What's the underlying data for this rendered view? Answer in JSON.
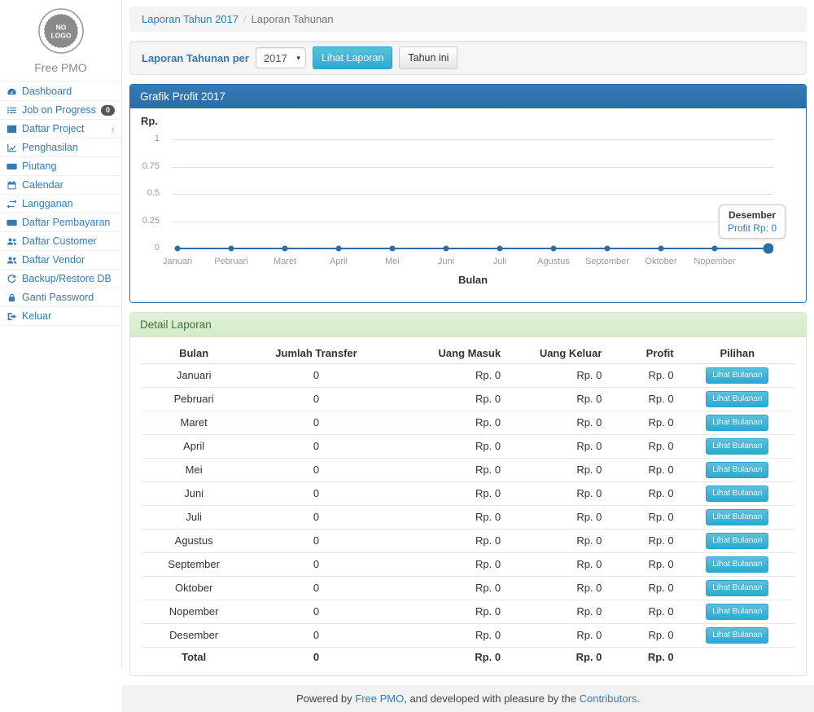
{
  "app": {
    "name": "Free PMO",
    "logo_text_line1": "NO",
    "logo_text_line2": "LOGO"
  },
  "colors": {
    "primary_header": "#2e6da4",
    "link": "#337ab7",
    "info_button": "#5bc0de",
    "success_header_bg": "#dff0d8",
    "success_header_text": "#3c763d",
    "chart_line": "#2e6da4",
    "badge_bg": "#555555"
  },
  "sidebar": {
    "items": [
      {
        "icon": "dashboard",
        "label": "Dashboard"
      },
      {
        "icon": "tasks",
        "label": "Job on Progress",
        "badge": "0"
      },
      {
        "icon": "table",
        "label": "Daftar Project",
        "chevron": true
      },
      {
        "icon": "line-chart",
        "label": "Penghasilan"
      },
      {
        "icon": "money",
        "label": "Piutang"
      },
      {
        "icon": "calendar",
        "label": "Calendar"
      },
      {
        "icon": "exchange",
        "label": "Langganan"
      },
      {
        "icon": "money",
        "label": "Daftar Pembayaran"
      },
      {
        "icon": "users",
        "label": "Daftar Customer"
      },
      {
        "icon": "users",
        "label": "Daftar Vendor"
      },
      {
        "icon": "refresh",
        "label": "Backup/Restore DB"
      },
      {
        "icon": "lock",
        "label": "Ganti Password"
      },
      {
        "icon": "sign-out",
        "label": "Keluar"
      }
    ]
  },
  "breadcrumb": {
    "link": "Laporan Tahun 2017",
    "separator": "/",
    "current": "Laporan Tahunan"
  },
  "filter": {
    "label": "Laporan Tahunan per",
    "year": "2017",
    "view_button": "Lihat Laporan",
    "this_year_button": "Tahun ini"
  },
  "chart_panel": {
    "title": "Grafik Profit 2017"
  },
  "chart_data": {
    "type": "line",
    "title": "Grafik Profit 2017",
    "x": [
      "Januari",
      "Pebruari",
      "Maret",
      "April",
      "Mei",
      "Juni",
      "Juli",
      "Agustus",
      "September",
      "Oktober",
      "Nopember",
      "Desember"
    ],
    "series": [
      {
        "name": "Profit",
        "values": [
          0,
          0,
          0,
          0,
          0,
          0,
          0,
          0,
          0,
          0,
          0,
          0
        ]
      }
    ],
    "ylabel": "Rp.",
    "xlabel": "Bulan",
    "yticks": [
      0,
      0.25,
      0.5,
      0.75,
      1
    ],
    "ylim": [
      0,
      1.25
    ],
    "grid": true,
    "legend": false,
    "line_color": "#2e6da4",
    "highlight_index": 11,
    "last_x_label_hidden": true,
    "tooltip": {
      "title": "Desember",
      "value": "Profit Rp: 0"
    }
  },
  "detail_panel": {
    "title": "Detail Laporan",
    "table": {
      "columns": [
        "Bulan",
        "Jumlah Transfer",
        "Uang Masuk",
        "Uang Keluar",
        "Profit",
        "Pilihan"
      ],
      "rows": [
        {
          "bulan": "Januari",
          "jumlah_transfer": "0",
          "uang_masuk": "Rp. 0",
          "uang_keluar": "Rp. 0",
          "profit": "Rp. 0",
          "action": "Lihat Bulanan"
        },
        {
          "bulan": "Pebruari",
          "jumlah_transfer": "0",
          "uang_masuk": "Rp. 0",
          "uang_keluar": "Rp. 0",
          "profit": "Rp. 0",
          "action": "Lihat Bulanan"
        },
        {
          "bulan": "Maret",
          "jumlah_transfer": "0",
          "uang_masuk": "Rp. 0",
          "uang_keluar": "Rp. 0",
          "profit": "Rp. 0",
          "action": "Lihat Bulanan"
        },
        {
          "bulan": "April",
          "jumlah_transfer": "0",
          "uang_masuk": "Rp. 0",
          "uang_keluar": "Rp. 0",
          "profit": "Rp. 0",
          "action": "Lihat Bulanan"
        },
        {
          "bulan": "Mei",
          "jumlah_transfer": "0",
          "uang_masuk": "Rp. 0",
          "uang_keluar": "Rp. 0",
          "profit": "Rp. 0",
          "action": "Lihat Bulanan"
        },
        {
          "bulan": "Juni",
          "jumlah_transfer": "0",
          "uang_masuk": "Rp. 0",
          "uang_keluar": "Rp. 0",
          "profit": "Rp. 0",
          "action": "Lihat Bulanan"
        },
        {
          "bulan": "Juli",
          "jumlah_transfer": "0",
          "uang_masuk": "Rp. 0",
          "uang_keluar": "Rp. 0",
          "profit": "Rp. 0",
          "action": "Lihat Bulanan"
        },
        {
          "bulan": "Agustus",
          "jumlah_transfer": "0",
          "uang_masuk": "Rp. 0",
          "uang_keluar": "Rp. 0",
          "profit": "Rp. 0",
          "action": "Lihat Bulanan"
        },
        {
          "bulan": "September",
          "jumlah_transfer": "0",
          "uang_masuk": "Rp. 0",
          "uang_keluar": "Rp. 0",
          "profit": "Rp. 0",
          "action": "Lihat Bulanan"
        },
        {
          "bulan": "Oktober",
          "jumlah_transfer": "0",
          "uang_masuk": "Rp. 0",
          "uang_keluar": "Rp. 0",
          "profit": "Rp. 0",
          "action": "Lihat Bulanan"
        },
        {
          "bulan": "Nopember",
          "jumlah_transfer": "0",
          "uang_masuk": "Rp. 0",
          "uang_keluar": "Rp. 0",
          "profit": "Rp. 0",
          "action": "Lihat Bulanan"
        },
        {
          "bulan": "Desember",
          "jumlah_transfer": "0",
          "uang_masuk": "Rp. 0",
          "uang_keluar": "Rp. 0",
          "profit": "Rp. 0",
          "action": "Lihat Bulanan"
        }
      ],
      "total_row": {
        "label": "Total",
        "jumlah_transfer": "0",
        "uang_masuk": "Rp. 0",
        "uang_keluar": "Rp. 0",
        "profit": "Rp. 0"
      }
    }
  },
  "footer": {
    "prefix": "Powered by ",
    "link1": "Free PMO",
    "middle": ", and developed with pleasure by the ",
    "link2": "Contributors."
  }
}
